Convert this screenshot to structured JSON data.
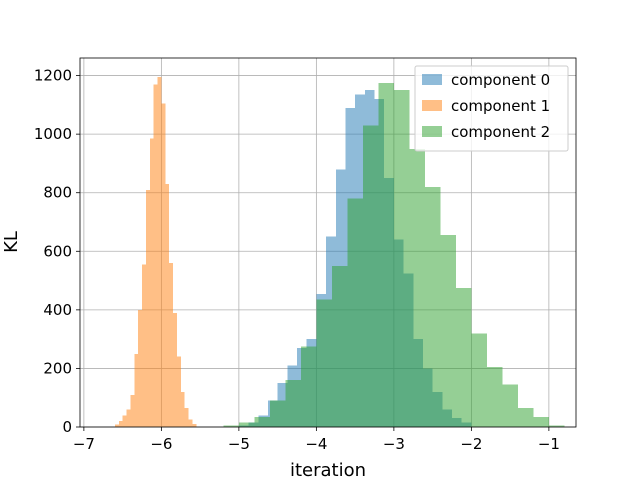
{
  "chart_data": {
    "type": "bar",
    "subtype": "histogram",
    "xlabel": "iteration",
    "ylabel": "KL",
    "xlim": [
      -7.05,
      -0.65
    ],
    "ylim": [
      0,
      1260
    ],
    "xticks": [
      -7,
      -6,
      -5,
      -4,
      -3,
      -2,
      -1
    ],
    "xtick_labels": [
      "−7",
      "−6",
      "−5",
      "−4",
      "−3",
      "−2",
      "−1"
    ],
    "yticks": [
      0,
      200,
      400,
      600,
      800,
      1000,
      1200
    ],
    "ytick_labels": [
      "0",
      "200",
      "400",
      "600",
      "800",
      "1000",
      "1200"
    ],
    "grid": true,
    "legend_position": "top-right",
    "series": [
      {
        "name": "component 0",
        "color": "#1f77b4",
        "opacity": 0.5,
        "bins": [
          [
            -5.0,
            -4.875,
            5
          ],
          [
            -4.875,
            -4.75,
            15
          ],
          [
            -4.75,
            -4.625,
            40
          ],
          [
            -4.625,
            -4.5,
            90
          ],
          [
            -4.5,
            -4.375,
            150
          ],
          [
            -4.375,
            -4.25,
            210
          ],
          [
            -4.25,
            -4.125,
            270
          ],
          [
            -4.125,
            -4.0,
            300
          ],
          [
            -4.0,
            -3.875,
            455
          ],
          [
            -3.875,
            -3.75,
            650
          ],
          [
            -3.75,
            -3.625,
            880
          ],
          [
            -3.625,
            -3.5,
            1090
          ],
          [
            -3.5,
            -3.375,
            1135
          ],
          [
            -3.375,
            -3.25,
            1150
          ],
          [
            -3.25,
            -3.125,
            1120
          ],
          [
            -3.125,
            -3.0,
            850
          ],
          [
            -3.0,
            -2.875,
            640
          ],
          [
            -2.875,
            -2.75,
            525
          ],
          [
            -2.75,
            -2.625,
            300
          ],
          [
            -2.625,
            -2.5,
            200
          ],
          [
            -2.5,
            -2.375,
            120
          ],
          [
            -2.375,
            -2.25,
            60
          ],
          [
            -2.25,
            -2.125,
            30
          ],
          [
            -2.125,
            -2.0,
            15
          ]
        ]
      },
      {
        "name": "component 1",
        "color": "#ff7f0e",
        "opacity": 0.5,
        "bins": [
          [
            -6.6,
            -6.55,
            8
          ],
          [
            -6.55,
            -6.5,
            20
          ],
          [
            -6.5,
            -6.45,
            40
          ],
          [
            -6.45,
            -6.4,
            60
          ],
          [
            -6.4,
            -6.35,
            110
          ],
          [
            -6.35,
            -6.3,
            250
          ],
          [
            -6.3,
            -6.25,
            400
          ],
          [
            -6.25,
            -6.2,
            555
          ],
          [
            -6.2,
            -6.15,
            810
          ],
          [
            -6.15,
            -6.1,
            985
          ],
          [
            -6.1,
            -6.05,
            1170
          ],
          [
            -6.05,
            -6.0,
            1195
          ],
          [
            -6.0,
            -5.95,
            1105
          ],
          [
            -5.95,
            -5.9,
            830
          ],
          [
            -5.9,
            -5.85,
            560
          ],
          [
            -5.85,
            -5.8,
            390
          ],
          [
            -5.8,
            -5.75,
            240
          ],
          [
            -5.75,
            -5.7,
            120
          ],
          [
            -5.7,
            -5.65,
            65
          ],
          [
            -5.65,
            -5.6,
            25
          ],
          [
            -5.6,
            -5.55,
            10
          ]
        ]
      },
      {
        "name": "component 2",
        "color": "#2ca02c",
        "opacity": 0.5,
        "bins": [
          [
            -5.2,
            -5.0,
            5
          ],
          [
            -5.0,
            -4.8,
            15
          ],
          [
            -4.8,
            -4.6,
            35
          ],
          [
            -4.6,
            -4.4,
            90
          ],
          [
            -4.4,
            -4.2,
            160
          ],
          [
            -4.2,
            -4.0,
            275
          ],
          [
            -4.0,
            -3.8,
            435
          ],
          [
            -3.8,
            -3.6,
            550
          ],
          [
            -3.6,
            -3.4,
            780
          ],
          [
            -3.4,
            -3.2,
            1030
          ],
          [
            -3.2,
            -3.0,
            1175
          ],
          [
            -3.0,
            -2.8,
            1150
          ],
          [
            -2.8,
            -2.6,
            950
          ],
          [
            -2.6,
            -2.4,
            820
          ],
          [
            -2.4,
            -2.2,
            655
          ],
          [
            -2.2,
            -2.0,
            475
          ],
          [
            -2.0,
            -1.8,
            320
          ],
          [
            -1.8,
            -1.6,
            205
          ],
          [
            -1.6,
            -1.4,
            145
          ],
          [
            -1.4,
            -1.2,
            65
          ],
          [
            -1.2,
            -1.0,
            35
          ],
          [
            -1.0,
            -0.8,
            5
          ]
        ]
      }
    ]
  }
}
